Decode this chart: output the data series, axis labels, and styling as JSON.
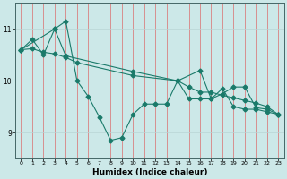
{
  "title": "",
  "xlabel": "Humidex (Indice chaleur)",
  "background_color": "#cce8e8",
  "grid_color_v": "#d98080",
  "grid_color_h": "#b8d4d4",
  "line_color": "#1a7a6a",
  "xlim": [
    -0.5,
    23.5
  ],
  "ylim": [
    8.5,
    11.5
  ],
  "yticks": [
    9,
    10,
    11
  ],
  "xticks": [
    0,
    1,
    2,
    3,
    4,
    5,
    6,
    7,
    8,
    9,
    10,
    11,
    12,
    13,
    14,
    15,
    16,
    17,
    18,
    19,
    20,
    21,
    22,
    23
  ],
  "series1_x": [
    0,
    1,
    2,
    3,
    4,
    5,
    6,
    7,
    8,
    9,
    10,
    11,
    12,
    13,
    14,
    15,
    16,
    17,
    18,
    19,
    20,
    21,
    22,
    23
  ],
  "series1_y": [
    10.6,
    10.8,
    10.5,
    11.0,
    11.15,
    10.0,
    9.7,
    9.3,
    8.85,
    8.9,
    9.35,
    9.55,
    9.55,
    9.55,
    10.0,
    9.65,
    9.65,
    9.65,
    9.85,
    9.5,
    9.45,
    9.45,
    9.4,
    9.35
  ],
  "series2_x": [
    0,
    1,
    2,
    3,
    4,
    5,
    10,
    14,
    15,
    16,
    17,
    18,
    19,
    20,
    21,
    22,
    23
  ],
  "series2_y": [
    10.6,
    10.62,
    10.55,
    10.52,
    10.45,
    10.35,
    10.1,
    10.0,
    9.88,
    9.78,
    9.78,
    9.72,
    9.67,
    9.62,
    9.57,
    9.5,
    9.35
  ],
  "series3_x": [
    0,
    3,
    4,
    10,
    14,
    16,
    17,
    18,
    19,
    20,
    21,
    22,
    23
  ],
  "series3_y": [
    10.6,
    11.0,
    10.48,
    10.18,
    10.0,
    10.2,
    9.65,
    9.75,
    9.88,
    9.88,
    9.48,
    9.45,
    9.35
  ]
}
